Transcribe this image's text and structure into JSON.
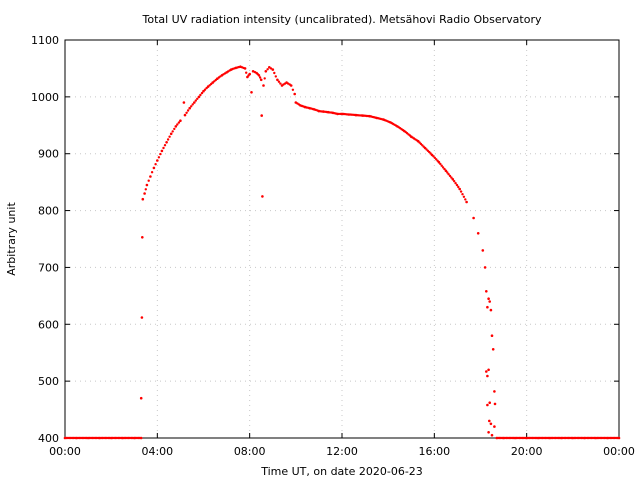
{
  "chart_data": {
    "type": "scatter",
    "title": "Total UV radiation intensity (uncalibrated). Metsähovi Radio Observatory",
    "xlabel": "Time UT, on date 2020-06-23",
    "ylabel": "Arbitrary unit",
    "xlim": [
      "00:00",
      "24:00"
    ],
    "ylim": [
      400,
      1100
    ],
    "x_ticks": [
      "00:00",
      "04:00",
      "08:00",
      "12:00",
      "16:00",
      "20:00",
      "00:00"
    ],
    "y_ticks": [
      400,
      500,
      600,
      700,
      800,
      900,
      1000,
      1100
    ],
    "grid": true,
    "marker_color": "#ff0000",
    "series": [
      {
        "x_units": "hours UT",
        "points": [
          [
            0.0,
            400
          ],
          [
            0.5,
            400
          ],
          [
            1.0,
            400
          ],
          [
            1.5,
            400
          ],
          [
            2.0,
            400
          ],
          [
            2.5,
            400
          ],
          [
            3.0,
            400
          ],
          [
            3.3,
            400
          ],
          [
            3.3,
            470
          ],
          [
            3.33,
            612
          ],
          [
            3.35,
            753
          ],
          [
            3.37,
            820
          ],
          [
            3.45,
            830
          ],
          [
            3.55,
            845
          ],
          [
            3.7,
            860
          ],
          [
            3.85,
            875
          ],
          [
            4.0,
            888
          ],
          [
            4.2,
            905
          ],
          [
            4.4,
            920
          ],
          [
            4.6,
            935
          ],
          [
            4.8,
            948
          ],
          [
            5.0,
            958
          ],
          [
            5.15,
            990
          ],
          [
            5.2,
            968
          ],
          [
            5.4,
            980
          ],
          [
            5.6,
            990
          ],
          [
            5.8,
            1000
          ],
          [
            6.0,
            1010
          ],
          [
            6.2,
            1018
          ],
          [
            6.4,
            1025
          ],
          [
            6.6,
            1032
          ],
          [
            6.8,
            1038
          ],
          [
            7.0,
            1043
          ],
          [
            7.2,
            1048
          ],
          [
            7.4,
            1051
          ],
          [
            7.6,
            1053
          ],
          [
            7.8,
            1050
          ],
          [
            7.9,
            1035
          ],
          [
            8.0,
            1040
          ],
          [
            8.08,
            1008
          ],
          [
            8.15,
            1045
          ],
          [
            8.3,
            1042
          ],
          [
            8.4,
            1038
          ],
          [
            8.5,
            1030
          ],
          [
            8.52,
            967
          ],
          [
            8.55,
            825
          ],
          [
            8.6,
            1020
          ],
          [
            8.7,
            1045
          ],
          [
            8.85,
            1052
          ],
          [
            9.0,
            1048
          ],
          [
            9.2,
            1030
          ],
          [
            9.4,
            1020
          ],
          [
            9.6,
            1025
          ],
          [
            9.8,
            1020
          ],
          [
            9.95,
            1005
          ],
          [
            10.0,
            990
          ],
          [
            10.2,
            985
          ],
          [
            10.4,
            982
          ],
          [
            10.6,
            980
          ],
          [
            10.8,
            978
          ],
          [
            11.0,
            975
          ],
          [
            11.2,
            974
          ],
          [
            11.4,
            973
          ],
          [
            11.6,
            972
          ],
          [
            11.8,
            970
          ],
          [
            12.0,
            970
          ],
          [
            12.3,
            969
          ],
          [
            12.6,
            968
          ],
          [
            12.9,
            967
          ],
          [
            13.2,
            966
          ],
          [
            13.5,
            963
          ],
          [
            13.8,
            960
          ],
          [
            14.1,
            955
          ],
          [
            14.4,
            948
          ],
          [
            14.7,
            940
          ],
          [
            15.0,
            930
          ],
          [
            15.3,
            922
          ],
          [
            15.6,
            910
          ],
          [
            15.9,
            898
          ],
          [
            16.2,
            885
          ],
          [
            16.5,
            870
          ],
          [
            16.8,
            855
          ],
          [
            17.1,
            838
          ],
          [
            17.4,
            815
          ],
          [
            17.7,
            787
          ],
          [
            17.9,
            760
          ],
          [
            18.1,
            730
          ],
          [
            18.2,
            700
          ],
          [
            18.25,
            658
          ],
          [
            18.3,
            630
          ],
          [
            18.35,
            645
          ],
          [
            18.4,
            640
          ],
          [
            18.45,
            625
          ],
          [
            18.5,
            580
          ],
          [
            18.55,
            556
          ],
          [
            18.6,
            482
          ],
          [
            18.63,
            460
          ],
          [
            18.25,
            517
          ],
          [
            18.3,
            509
          ],
          [
            18.35,
            520
          ],
          [
            18.4,
            462
          ],
          [
            18.45,
            425
          ],
          [
            18.3,
            458
          ],
          [
            18.35,
            410
          ],
          [
            18.38,
            430
          ],
          [
            18.5,
            405
          ],
          [
            18.6,
            420
          ],
          [
            18.7,
            400
          ],
          [
            19.0,
            400
          ],
          [
            19.5,
            400
          ],
          [
            20.0,
            400
          ],
          [
            20.5,
            400
          ],
          [
            21.0,
            400
          ],
          [
            21.5,
            400
          ],
          [
            22.0,
            400
          ],
          [
            22.5,
            400
          ],
          [
            23.0,
            400
          ],
          [
            23.5,
            400
          ],
          [
            24.0,
            400
          ]
        ]
      }
    ]
  }
}
